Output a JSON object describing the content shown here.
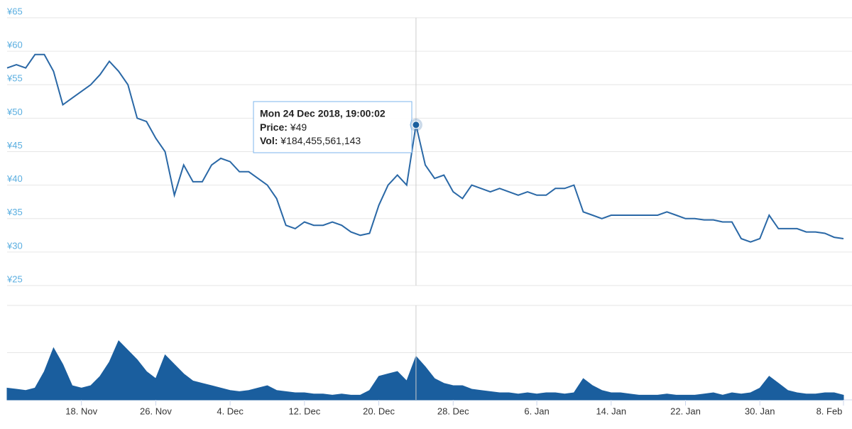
{
  "chart_data": {
    "type": "line",
    "x": [
      "2018-11-10",
      "2018-11-11",
      "2018-11-12",
      "2018-11-13",
      "2018-11-14",
      "2018-11-15",
      "2018-11-16",
      "2018-11-17",
      "2018-11-18",
      "2018-11-19",
      "2018-11-20",
      "2018-11-21",
      "2018-11-22",
      "2018-11-23",
      "2018-11-24",
      "2018-11-25",
      "2018-11-26",
      "2018-11-27",
      "2018-11-28",
      "2018-11-29",
      "2018-11-30",
      "2018-12-01",
      "2018-12-02",
      "2018-12-03",
      "2018-12-04",
      "2018-12-05",
      "2018-12-06",
      "2018-12-07",
      "2018-12-08",
      "2018-12-09",
      "2018-12-10",
      "2018-12-11",
      "2018-12-12",
      "2018-12-13",
      "2018-12-14",
      "2018-12-15",
      "2018-12-16",
      "2018-12-17",
      "2018-12-18",
      "2018-12-19",
      "2018-12-20",
      "2018-12-21",
      "2018-12-22",
      "2018-12-23",
      "2018-12-24",
      "2018-12-25",
      "2018-12-26",
      "2018-12-27",
      "2018-12-28",
      "2018-12-29",
      "2018-12-30",
      "2018-12-31",
      "2019-01-01",
      "2019-01-02",
      "2019-01-03",
      "2019-01-04",
      "2019-01-05",
      "2019-01-06",
      "2019-01-07",
      "2019-01-08",
      "2019-01-09",
      "2019-01-10",
      "2019-01-11",
      "2019-01-12",
      "2019-01-13",
      "2019-01-14",
      "2019-01-15",
      "2019-01-16",
      "2019-01-17",
      "2019-01-18",
      "2019-01-19",
      "2019-01-20",
      "2019-01-21",
      "2019-01-22",
      "2019-01-23",
      "2019-01-24",
      "2019-01-25",
      "2019-01-26",
      "2019-01-27",
      "2019-01-28",
      "2019-01-29",
      "2019-01-30",
      "2019-01-31",
      "2019-02-01",
      "2019-02-02",
      "2019-02-03",
      "2019-02-04",
      "2019-02-05",
      "2019-02-06",
      "2019-02-07",
      "2019-02-08"
    ],
    "series": [
      {
        "name": "Price",
        "color": "#2a68a6",
        "values": [
          57.5,
          58,
          57.5,
          59.5,
          59.5,
          57,
          52,
          53,
          54,
          55,
          56.5,
          58.5,
          57,
          55,
          50,
          49.5,
          47,
          45,
          38.5,
          43,
          40.5,
          40.5,
          43,
          44,
          43.5,
          42,
          42,
          41,
          40,
          38,
          34,
          33.5,
          34.5,
          34,
          34,
          34.5,
          34,
          33,
          32.5,
          32.8,
          37,
          40,
          41.5,
          40,
          49,
          43,
          41,
          41.5,
          39,
          38,
          40,
          39.5,
          39,
          39.5,
          39,
          38.5,
          39,
          38.5,
          38.5,
          39.5,
          39.5,
          40,
          36,
          35.5,
          35,
          35.5,
          35.5,
          35.5,
          35.5,
          35.5,
          35.5,
          36,
          35.5,
          35,
          35,
          34.8,
          34.8,
          34.5,
          34.5,
          32,
          31.5,
          32,
          35.5,
          33.5,
          33.5,
          33.5,
          33,
          33,
          32.8,
          32.2,
          32
        ]
      },
      {
        "name": "Vol",
        "color": "#1a5e9e",
        "axis": "y2",
        "values": [
          50,
          45,
          40,
          50,
          120,
          220,
          150,
          60,
          50,
          60,
          100,
          160,
          250,
          210,
          170,
          120,
          90,
          190,
          150,
          110,
          80,
          70,
          60,
          50,
          40,
          35,
          40,
          50,
          60,
          40,
          35,
          30,
          30,
          25,
          25,
          20,
          25,
          20,
          20,
          40,
          100,
          110,
          120,
          80,
          184.46,
          140,
          90,
          70,
          60,
          60,
          45,
          40,
          35,
          30,
          30,
          25,
          30,
          25,
          30,
          30,
          25,
          30,
          90,
          60,
          40,
          30,
          30,
          25,
          20,
          20,
          20,
          25,
          20,
          20,
          20,
          25,
          30,
          20,
          30,
          25,
          30,
          50,
          100,
          70,
          40,
          30,
          25,
          25,
          30,
          30,
          20
        ]
      }
    ],
    "xlim": [
      "2018-11-10",
      "2019-02-08"
    ],
    "xticks": [
      {
        "value": "2018-11-18",
        "label": "18. Nov"
      },
      {
        "value": "2018-11-26",
        "label": "26. Nov"
      },
      {
        "value": "2018-12-04",
        "label": "4. Dec"
      },
      {
        "value": "2018-12-12",
        "label": "12. Dec"
      },
      {
        "value": "2018-12-20",
        "label": "20. Dec"
      },
      {
        "value": "2018-12-28",
        "label": "28. Dec"
      },
      {
        "value": "2019-01-06",
        "label": "6. Jan"
      },
      {
        "value": "2019-01-14",
        "label": "14. Jan"
      },
      {
        "value": "2019-01-22",
        "label": "22. Jan"
      },
      {
        "value": "2019-01-30",
        "label": "30. Jan"
      },
      {
        "value": "2019-02-08",
        "label": "8. Feb"
      }
    ],
    "ylim": [
      25,
      65
    ],
    "yticks": [
      {
        "value": 25,
        "label": "¥25"
      },
      {
        "value": 30,
        "label": "¥30"
      },
      {
        "value": 35,
        "label": "¥35"
      },
      {
        "value": 40,
        "label": "¥40"
      },
      {
        "value": 45,
        "label": "¥45"
      },
      {
        "value": 50,
        "label": "¥50"
      },
      {
        "value": 55,
        "label": "¥55"
      },
      {
        "value": 60,
        "label": "¥60"
      },
      {
        "value": 65,
        "label": "¥65"
      }
    ],
    "y2lim": [
      0,
      400
    ],
    "y2ticks": [
      0,
      200,
      400
    ],
    "grid": true,
    "tooltip": {
      "index": 44,
      "date": "Mon 24 Dec 2018, 19:00:02",
      "price_label": "Price:",
      "price": "¥49",
      "vol_label": "Vol:",
      "vol": "¥184,455,561,143"
    }
  }
}
